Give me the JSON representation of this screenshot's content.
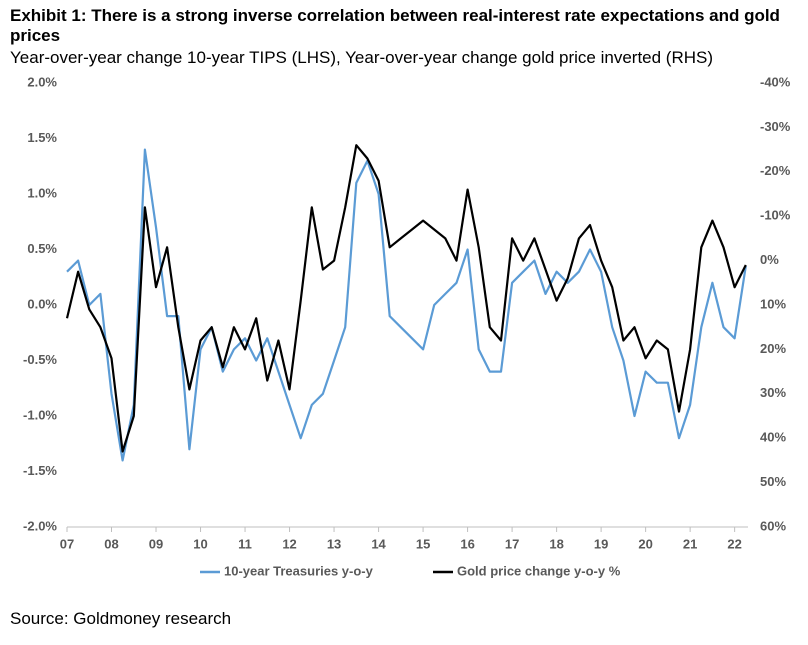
{
  "chart_data": {
    "type": "line",
    "title": "Exhibit 1: There is a strong inverse correlation between real-interest rate expectations and gold prices",
    "subtitle": "Year-over-year change 10-year TIPS (LHS), Year-over-year change gold price inverted (RHS)",
    "source": "Source: Goldmoney research",
    "xlim": [
      2007,
      2022.3
    ],
    "xticks": [
      {
        "value": 2007,
        "label": "07"
      },
      {
        "value": 2008,
        "label": "08"
      },
      {
        "value": 2009,
        "label": "09"
      },
      {
        "value": 2010,
        "label": "10"
      },
      {
        "value": 2011,
        "label": "11"
      },
      {
        "value": 2012,
        "label": "12"
      },
      {
        "value": 2013,
        "label": "13"
      },
      {
        "value": 2014,
        "label": "14"
      },
      {
        "value": 2015,
        "label": "15"
      },
      {
        "value": 2016,
        "label": "16"
      },
      {
        "value": 2017,
        "label": "17"
      },
      {
        "value": 2018,
        "label": "18"
      },
      {
        "value": 2019,
        "label": "19"
      },
      {
        "value": 2020,
        "label": "20"
      },
      {
        "value": 2021,
        "label": "21"
      },
      {
        "value": 2022,
        "label": "22"
      }
    ],
    "ylim": [
      -2,
      2
    ],
    "yticks": [
      {
        "value": 2,
        "label": "2.0%"
      },
      {
        "value": 1.5,
        "label": "1.5%"
      },
      {
        "value": 1,
        "label": "1.0%"
      },
      {
        "value": 0.5,
        "label": "0.5%"
      },
      {
        "value": 0,
        "label": "0.0%"
      },
      {
        "value": -0.5,
        "label": "-0.5%"
      },
      {
        "value": -1,
        "label": "-1.0%"
      },
      {
        "value": -1.5,
        "label": "-1.5%"
      },
      {
        "value": -2,
        "label": "-2.0%"
      }
    ],
    "y2lim": [
      60,
      -40
    ],
    "y2ticks": [
      {
        "value": -40,
        "label": "-40%"
      },
      {
        "value": -30,
        "label": "-30%"
      },
      {
        "value": -20,
        "label": "-20%"
      },
      {
        "value": -10,
        "label": "-10%"
      },
      {
        "value": 0,
        "label": "0%"
      },
      {
        "value": 10,
        "label": "10%"
      },
      {
        "value": 20,
        "label": "20%"
      },
      {
        "value": 30,
        "label": "30%"
      },
      {
        "value": 40,
        "label": "40%"
      },
      {
        "value": 50,
        "label": "50%"
      },
      {
        "value": 60,
        "label": "60%"
      }
    ],
    "x": [
      2007,
      2007.25,
      2007.5,
      2007.75,
      2008,
      2008.25,
      2008.5,
      2008.75,
      2009,
      2009.25,
      2009.5,
      2009.75,
      2010,
      2010.25,
      2010.5,
      2010.75,
      2011,
      2011.25,
      2011.5,
      2011.75,
      2012,
      2012.25,
      2012.5,
      2012.75,
      2013,
      2013.25,
      2013.5,
      2013.75,
      2014,
      2014.25,
      2014.5,
      2014.75,
      2015,
      2015.25,
      2015.5,
      2015.75,
      2016,
      2016.25,
      2016.5,
      2016.75,
      2017,
      2017.25,
      2017.5,
      2017.75,
      2018,
      2018.25,
      2018.5,
      2018.75,
      2019,
      2019.25,
      2019.5,
      2019.75,
      2020,
      2020.25,
      2020.5,
      2020.75,
      2021,
      2021.25,
      2021.5,
      2021.75,
      2022,
      2022.25
    ],
    "series": [
      {
        "name": "10-year Treasuries y-o-y",
        "color": "#5b9bd5",
        "values": [
          0.3,
          0.4,
          0.0,
          0.1,
          -0.8,
          -1.4,
          -0.9,
          1.4,
          0.7,
          -0.1,
          -0.1,
          -1.3,
          -0.4,
          -0.2,
          -0.6,
          -0.4,
          -0.3,
          -0.5,
          -0.3,
          -0.6,
          -0.9,
          -1.2,
          -0.9,
          -0.8,
          -0.5,
          -0.2,
          1.1,
          1.3,
          1.0,
          -0.1,
          -0.2,
          -0.3,
          -0.4,
          0.0,
          0.1,
          0.2,
          0.5,
          -0.4,
          -0.6,
          -0.6,
          0.2,
          0.3,
          0.4,
          0.1,
          0.3,
          0.2,
          0.3,
          0.5,
          0.3,
          -0.2,
          -0.5,
          -1.0,
          -0.6,
          -0.7,
          -0.7,
          -1.2,
          -0.9,
          -0.2,
          0.2,
          -0.2,
          -0.3,
          0.35
        ]
      },
      {
        "name": "Gold price change y-o-y %",
        "color": "#000000",
        "axis": "y2",
        "values": [
          13,
          2.5,
          11,
          15,
          22,
          43,
          35,
          -12,
          6,
          -3,
          15,
          29,
          18,
          15,
          24,
          15,
          20,
          13,
          27,
          18,
          29,
          9,
          -12,
          2,
          0,
          -12,
          -26,
          -23,
          -18,
          -3,
          -5,
          -7,
          -9,
          -7,
          -5,
          0,
          -16,
          -3,
          15,
          18,
          -5,
          0,
          -5,
          2,
          9,
          4,
          -5,
          -8,
          0,
          6,
          18,
          15,
          22,
          18,
          20,
          34,
          20,
          -3,
          -9,
          -3,
          6,
          1
        ]
      }
    ]
  }
}
